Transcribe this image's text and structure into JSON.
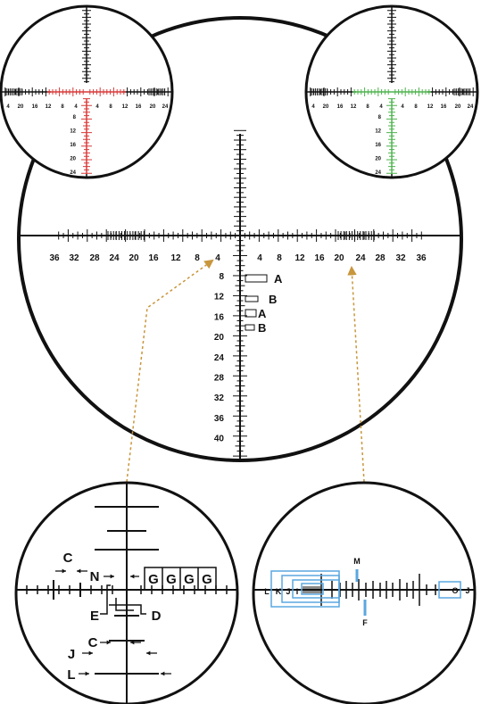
{
  "colors": {
    "ink": "#111111",
    "red_reticle": "#d93a3a",
    "green_reticle": "#4fb34f",
    "callout_line": "#c8963c",
    "diagram_blue": "#5aa7e0"
  },
  "main_reticle": {
    "horizontal_labels": [
      "36",
      "32",
      "28",
      "24",
      "20",
      "16",
      "12",
      "8",
      "4",
      "4",
      "8",
      "12",
      "16",
      "20",
      "24",
      "28",
      "32",
      "36"
    ],
    "vertical_labels": [
      "8",
      "12",
      "16",
      "20",
      "24",
      "28",
      "32",
      "36",
      "40"
    ],
    "right_labels": [
      "A",
      "B",
      "A",
      "B"
    ]
  },
  "inset_red": {
    "horizontal_labels": [
      "4",
      "20",
      "16",
      "12",
      "8",
      "4",
      "4",
      "8",
      "12",
      "16",
      "20",
      "24"
    ],
    "vertical_labels": [
      "8",
      "12",
      "16",
      "20",
      "24"
    ]
  },
  "inset_green": {
    "horizontal_labels": [
      "4",
      "20",
      "16",
      "12",
      "8",
      "4",
      "4",
      "8",
      "12",
      "16",
      "20",
      "24"
    ],
    "vertical_labels": [
      "8",
      "12",
      "16",
      "20",
      "24"
    ]
  },
  "detail_left": {
    "labels": {
      "C_top": "C",
      "N": "N",
      "G1": "G",
      "G2": "G",
      "G3": "G",
      "G4": "G",
      "E": "E",
      "D": "D",
      "C_bottom": "C",
      "J": "J",
      "L": "L"
    }
  },
  "detail_right": {
    "labels": {
      "L": "L",
      "K": "K",
      "J_left": "J",
      "I": "I",
      "M": "M",
      "F": "F",
      "O": "O",
      "J_right": "J"
    }
  }
}
